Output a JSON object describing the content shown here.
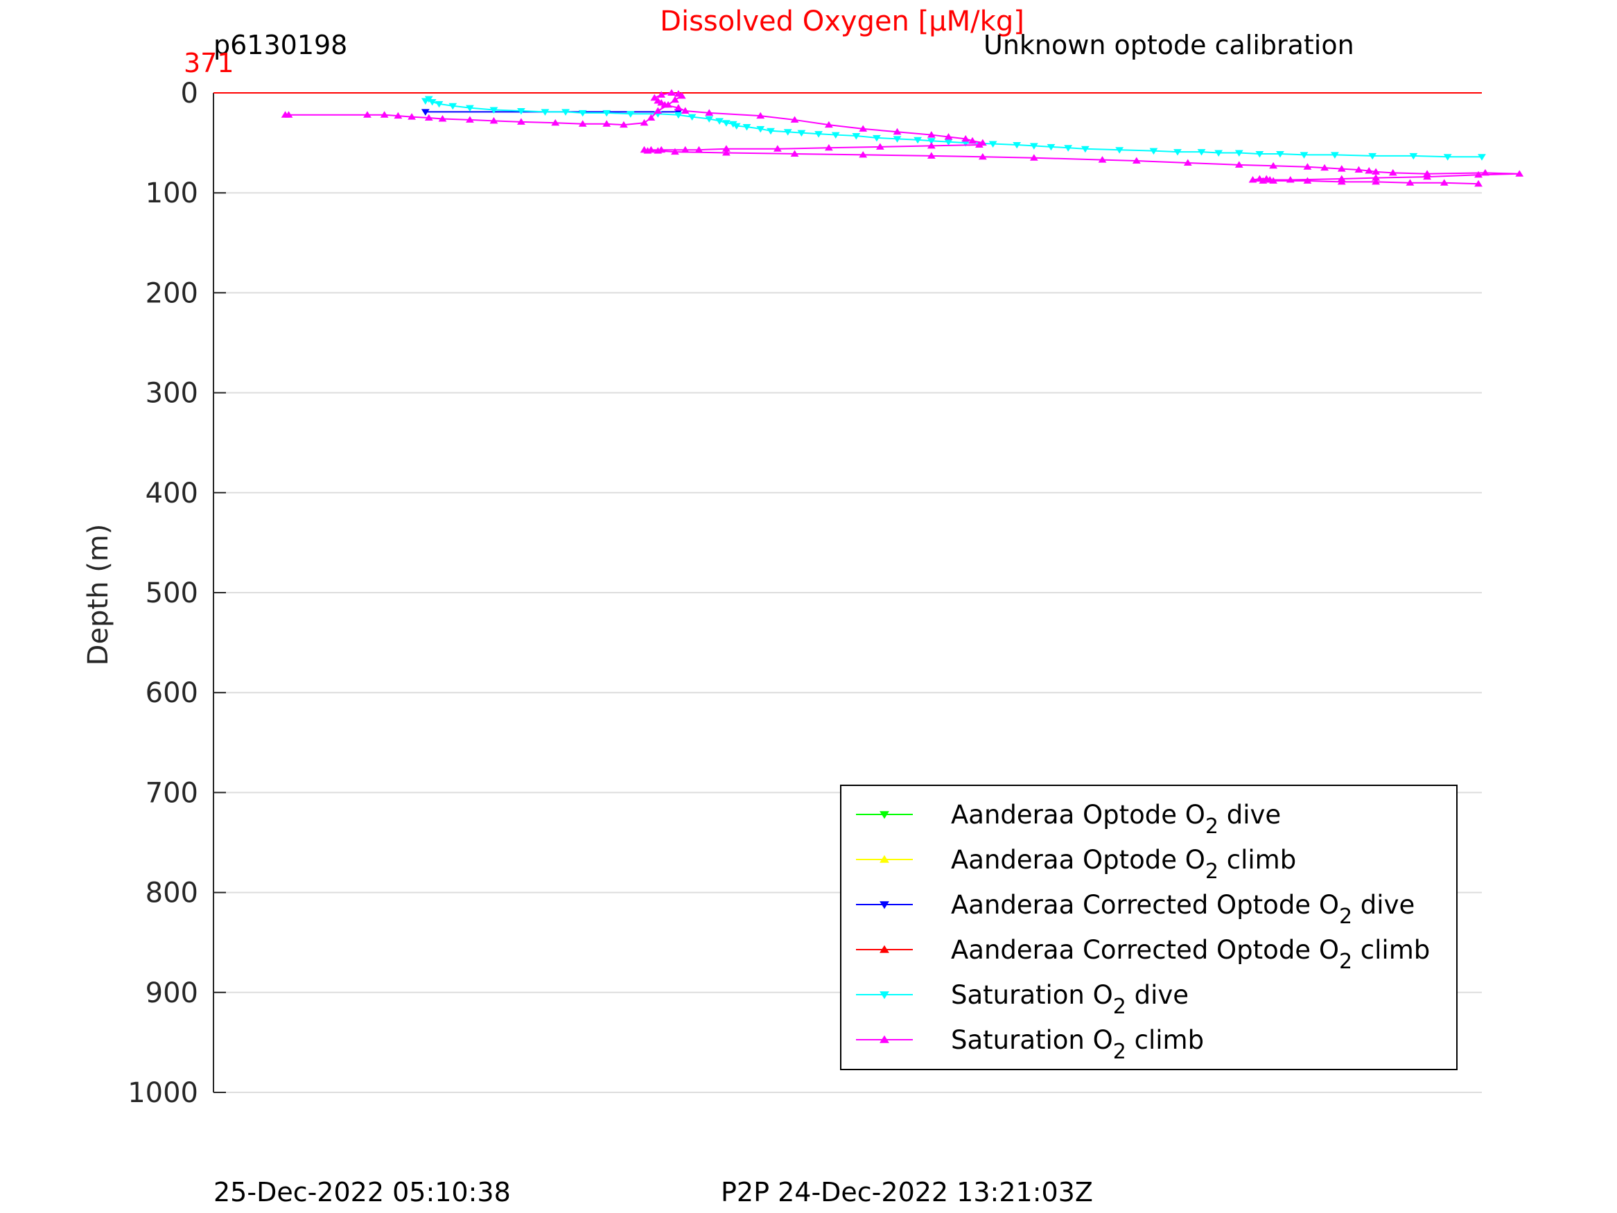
{
  "header": {
    "title": "Dissolved Oxygen [μM/kg]",
    "glider_id": "p6130198",
    "calibration_note": "Unknown optode calibration",
    "top_value": "371"
  },
  "footer": {
    "left_timestamp": "25-Dec-2022 05:10:38",
    "right_timestamp": "P2P 24-Dec-2022 13:21:03Z"
  },
  "colors": {
    "title": "#ff0000",
    "top_value": "#ff0000",
    "grid": "#dddddd",
    "axis": "#262626"
  },
  "chart_data": {
    "type": "line",
    "title": "Dissolved Oxygen [μM/kg]",
    "xlabel": "",
    "ylabel": "Depth (m)",
    "ylim": [
      0,
      1000
    ],
    "y_reversed": true,
    "y_ticks": [
      0,
      100,
      200,
      300,
      400,
      500,
      600,
      700,
      800,
      900,
      1000
    ],
    "xlim": [
      0,
      371
    ],
    "x_ticks_shown": false,
    "grid": true,
    "legend_position": "bottom-right",
    "series": [
      {
        "name": "Aanderaa Optode O_2 dive",
        "color": "#00ff00",
        "marker": "triangle-down",
        "x": [],
        "y": []
      },
      {
        "name": "Aanderaa Optode O_2 climb",
        "color": "#ffff00",
        "marker": "triangle-up",
        "x": [],
        "y": []
      },
      {
        "name": "Aanderaa Corrected Optode O_2 dive",
        "color": "#0000ff",
        "marker": "triangle-down",
        "x": [
          136,
          62
        ],
        "y": [
          19,
          19
        ]
      },
      {
        "name": "Aanderaa Corrected Optode O_2 climb",
        "color": "#ff0000",
        "marker": "triangle-up",
        "x": [
          0,
          371
        ],
        "y": [
          0,
          0
        ]
      },
      {
        "name": "Saturation O_2 dive",
        "color": "#00ffff",
        "marker": "triangle-down",
        "x": [
          62,
          63,
          64,
          66,
          70,
          75,
          82,
          90,
          97,
          103,
          108,
          115,
          122,
          130,
          136,
          140,
          145,
          148,
          150,
          152,
          153,
          156,
          160,
          163,
          168,
          172,
          177,
          182,
          188,
          194,
          200,
          206,
          210,
          215,
          220,
          228,
          235,
          240,
          245,
          250,
          255,
          265,
          275,
          282,
          289,
          294,
          300,
          306,
          312,
          319,
          328,
          339,
          351,
          361,
          371
        ],
        "y": [
          8,
          6,
          9,
          11,
          13,
          15,
          17,
          18,
          19,
          19,
          20,
          20,
          21,
          21,
          22,
          24,
          26,
          28,
          30,
          31,
          33,
          34,
          36,
          38,
          39,
          40,
          41,
          42,
          43,
          45,
          46,
          47,
          48,
          49,
          50,
          51,
          52,
          53,
          54,
          55,
          56,
          57,
          58,
          59,
          59,
          60,
          60,
          61,
          61,
          62,
          62,
          63,
          63,
          64,
          64
        ]
      },
      {
        "name": "Saturation O_2 climb",
        "color": "#ff00ff",
        "marker": "triangle-up",
        "x": [
          21,
          22,
          45,
          50,
          54,
          58,
          63,
          67,
          75,
          82,
          90,
          100,
          108,
          115,
          120,
          126,
          128,
          130,
          133,
          135,
          137,
          136,
          134,
          131,
          129,
          130,
          131,
          132,
          136,
          138,
          145,
          160,
          170,
          180,
          190,
          200,
          210,
          215,
          220,
          222,
          225,
          224,
          210,
          195,
          180,
          165,
          150,
          142,
          138,
          131,
          128,
          126,
          127,
          130,
          135,
          150,
          170,
          190,
          210,
          225,
          240,
          260,
          270,
          285,
          300,
          310,
          320,
          325,
          330,
          335,
          338,
          340,
          345,
          355,
          372,
          382,
          370,
          355,
          340,
          330,
          315,
          309,
          308,
          306,
          304,
          307,
          310,
          320,
          330,
          340,
          350,
          360,
          370
        ],
        "y": [
          22,
          22,
          22,
          22,
          23,
          24,
          25,
          26,
          27,
          28,
          29,
          30,
          31,
          31,
          32,
          30,
          25,
          18,
          12,
          7,
          3,
          1,
          0,
          2,
          5,
          8,
          10,
          12,
          15,
          18,
          20,
          23,
          27,
          32,
          36,
          39,
          42,
          44,
          46,
          48,
          50,
          52,
          53,
          54,
          55,
          56,
          56,
          57,
          57,
          57,
          57,
          57,
          58,
          58,
          59,
          60,
          61,
          62,
          63,
          64,
          65,
          67,
          68,
          70,
          72,
          73,
          74,
          75,
          76,
          77,
          78,
          79,
          80,
          81,
          80,
          81,
          82,
          84,
          85,
          86,
          87,
          87,
          86,
          86,
          87,
          88,
          88,
          88,
          89,
          89,
          90,
          90,
          91
        ]
      }
    ]
  },
  "legend": {
    "items": [
      {
        "pre": "Aanderaa Optode O",
        "sub": "2",
        "post": " dive",
        "color": "#00ff00",
        "marker": "down"
      },
      {
        "pre": "Aanderaa Optode O",
        "sub": "2",
        "post": " climb",
        "color": "#ffff00",
        "marker": "up"
      },
      {
        "pre": "Aanderaa Corrected Optode O",
        "sub": "2",
        "post": " dive",
        "color": "#0000ff",
        "marker": "down"
      },
      {
        "pre": "Aanderaa Corrected Optode O",
        "sub": "2",
        "post": " climb",
        "color": "#ff0000",
        "marker": "up"
      },
      {
        "pre": "Saturation O",
        "sub": "2",
        "post": " dive",
        "color": "#00ffff",
        "marker": "down"
      },
      {
        "pre": "Saturation O",
        "sub": "2",
        "post": " climb",
        "color": "#ff00ff",
        "marker": "up"
      }
    ]
  }
}
